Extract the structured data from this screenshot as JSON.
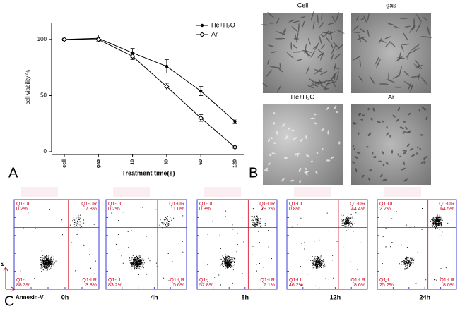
{
  "panels": {
    "a": "A",
    "b": "B",
    "c": "C"
  },
  "chart_data": {
    "type": "line",
    "categories": [
      "cell",
      "gas",
      "10",
      "30",
      "60",
      "120"
    ],
    "xlabel": "Treatment time(s)",
    "ylabel": "cell viability %",
    "ylim": [
      0,
      115
    ],
    "yticks": [
      0,
      50,
      100
    ],
    "legend": "top-right",
    "series": [
      {
        "name": "He+H₂O",
        "color": "#000000",
        "marker": "filled",
        "values": [
          100,
          101,
          88,
          76,
          54,
          27
        ],
        "errors": [
          1,
          3,
          4,
          6,
          4,
          2
        ]
      },
      {
        "name": "Ar",
        "color": "#000000",
        "marker": "open",
        "values": [
          100,
          100,
          85,
          58,
          30,
          4
        ],
        "errors": [
          1,
          2,
          3,
          3,
          3,
          1
        ]
      }
    ]
  },
  "images": [
    {
      "label": "Cell"
    },
    {
      "label": "gas"
    },
    {
      "label": "He+H₂O"
    },
    {
      "label": "Ar"
    }
  ],
  "flow": {
    "y_axis": "PI",
    "x_axis": "Annexin-V",
    "plots": [
      {
        "time": "0h",
        "quadrants": [
          {
            "name": "Q1-UL",
            "value": "0.2%"
          },
          {
            "name": "Q1-UR",
            "value": "7.8%"
          },
          {
            "name": "Q1-LL",
            "value": "88.3%"
          },
          {
            "name": "Q1-LR",
            "value": "3.8%"
          }
        ]
      },
      {
        "time": "4h",
        "quadrants": [
          {
            "name": "Q1-UL",
            "value": "0.2%"
          },
          {
            "name": "Q1-UR",
            "value": "11.0%"
          },
          {
            "name": "Q1-LL",
            "value": "83.2%"
          },
          {
            "name": "Q1-LR",
            "value": "5.6%"
          }
        ]
      },
      {
        "time": "8h",
        "quadrants": [
          {
            "name": "Q1-UL",
            "value": "0.8%"
          },
          {
            "name": "Q1-UR",
            "value": "29.2%"
          },
          {
            "name": "Q1-LL",
            "value": "52.8%"
          },
          {
            "name": "Q1-LR",
            "value": "7.1%"
          }
        ]
      },
      {
        "time": "12h",
        "quadrants": [
          {
            "name": "Q1-UL",
            "value": "0.8%"
          },
          {
            "name": "Q1-UR",
            "value": "44.4%"
          },
          {
            "name": "Q1-LL",
            "value": "46.2%"
          },
          {
            "name": "Q1-LR",
            "value": "8.6%"
          }
        ]
      },
      {
        "time": "24h",
        "quadrants": [
          {
            "name": "Q1-UL",
            "value": "2.2%"
          },
          {
            "name": "Q1-UR",
            "value": "64.5%"
          },
          {
            "name": "Q1-LL",
            "value": "25.2%"
          },
          {
            "name": "Q1-LR",
            "value": "8.0%"
          }
        ]
      }
    ]
  }
}
